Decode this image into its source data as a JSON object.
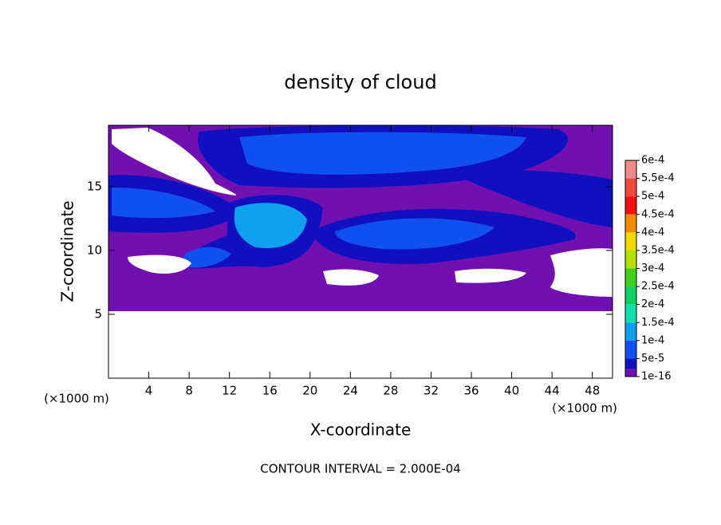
{
  "chart_data": {
    "type": "contour",
    "title": "density of cloud",
    "x_label": "X-coordinate",
    "y_label": "Z-coordinate",
    "x_unit": "(×1000 m)",
    "y_unit": "(×1000 m)",
    "footer": "CONTOUR INTERVAL = 2.000E-04",
    "xlim": [
      0,
      50
    ],
    "ylim": [
      0,
      19.8
    ],
    "xticks": [
      4,
      8,
      12,
      16,
      20,
      24,
      28,
      32,
      36,
      40,
      44,
      48
    ],
    "yticks": [
      5,
      10,
      15
    ],
    "colorbar": {
      "levels": [
        {
          "value": 0.0006,
          "label": "6e-4"
        },
        {
          "value": 0.00055,
          "label": "5.5e-4"
        },
        {
          "value": 0.0005,
          "label": "5e-4"
        },
        {
          "value": 0.00045,
          "label": "4.5e-4"
        },
        {
          "value": 0.0004,
          "label": "4e-4"
        },
        {
          "value": 0.00035,
          "label": "3.5e-4"
        },
        {
          "value": 0.0003,
          "label": "3e-4"
        },
        {
          "value": 0.00025,
          "label": "2.5e-4"
        },
        {
          "value": 0.0002,
          "label": "2e-4"
        },
        {
          "value": 0.00015,
          "label": "1.5e-4"
        },
        {
          "value": 0.0001,
          "label": "1e-4"
        },
        {
          "value": 5e-05,
          "label": "5e-5"
        },
        {
          "value": 1e-16,
          "label": "1e-16"
        }
      ],
      "colors": [
        "#f08a8a",
        "#f04a3a",
        "#f01010",
        "#f08c00",
        "#f0d800",
        "#b4e000",
        "#40d020",
        "#10d060",
        "#10e0b0",
        "#10a0f0",
        "#1050f0",
        "#1010c0",
        "#7010b0"
      ]
    }
  }
}
